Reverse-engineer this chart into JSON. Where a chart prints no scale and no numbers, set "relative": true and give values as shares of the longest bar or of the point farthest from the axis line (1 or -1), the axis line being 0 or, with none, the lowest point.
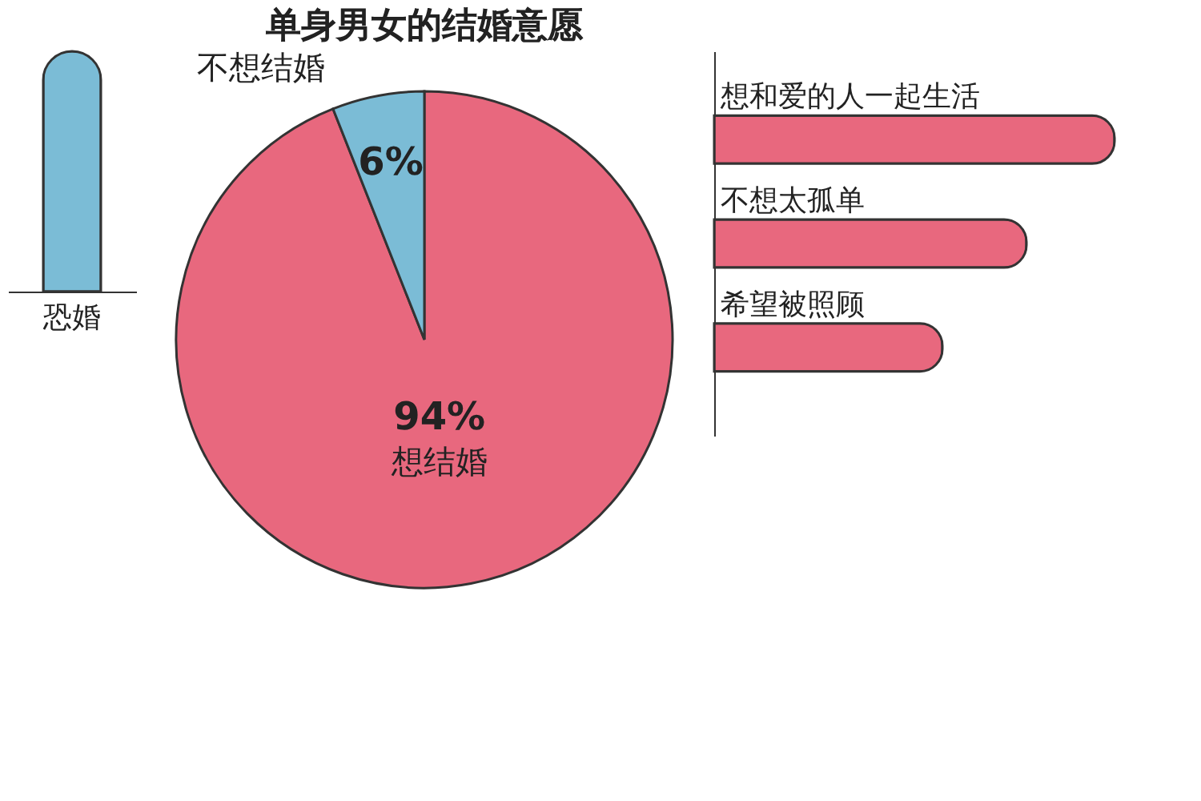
{
  "chart_data": [
    {
      "type": "bar",
      "relative": true,
      "categories": [
        "恐婚"
      ],
      "values": [
        1
      ],
      "color": "#7bbcd6",
      "grid": false,
      "legend": false
    },
    {
      "type": "pie",
      "title": "单身男女的结婚意愿",
      "categories": [
        "想结婚",
        "不想结婚"
      ],
      "values": [
        94,
        6
      ],
      "colors": [
        "#e8687e",
        "#7bbcd6"
      ],
      "value_labels": [
        "94%",
        "6%"
      ],
      "legend": false
    },
    {
      "type": "bar",
      "orientation": "horizontal",
      "relative": true,
      "categories": [
        "想和爱的人一起生活",
        "不想太孤单",
        "希望被照顾"
      ],
      "values": [
        1,
        0.78,
        0.57
      ],
      "color": "#e8687e",
      "grid": false,
      "legend": false
    }
  ]
}
